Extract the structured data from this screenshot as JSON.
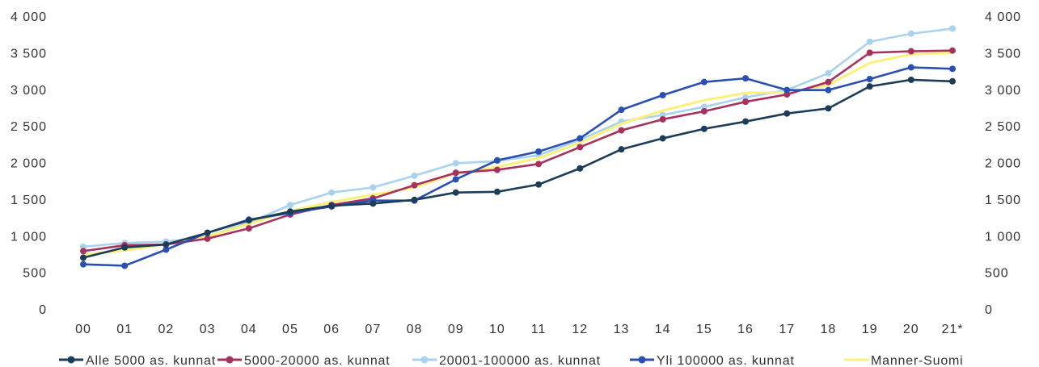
{
  "chart_data": {
    "type": "line",
    "categories": [
      "00",
      "01",
      "02",
      "03",
      "04",
      "05",
      "06",
      "07",
      "08",
      "09",
      "10",
      "11",
      "12",
      "13",
      "14",
      "15",
      "16",
      "17",
      "18",
      "19",
      "20",
      "21*"
    ],
    "y_ticks": [
      "0",
      "500",
      "1 000",
      "1 500",
      "2 000",
      "2 500",
      "3 000",
      "3 500",
      "4 000"
    ],
    "y_tick_values": [
      0,
      500,
      1000,
      1500,
      2000,
      2500,
      3000,
      3500,
      4000
    ],
    "ylim": [
      0,
      4000
    ],
    "grid": false,
    "legend_position": "bottom",
    "series": [
      {
        "name": "Alle 5000 as. kunnat",
        "color": "#1c3d5a",
        "marker": true,
        "values": [
          700,
          840,
          880,
          1040,
          1210,
          1330,
          1410,
          1440,
          1490,
          1590,
          1600,
          1700,
          1920,
          2180,
          2330,
          2460,
          2560,
          2670,
          2740,
          3040,
          3130,
          3110
        ]
      },
      {
        "name": "5000-20000 as. kunnat",
        "color": "#a8305e",
        "marker": true,
        "values": [
          790,
          870,
          880,
          960,
          1100,
          1290,
          1420,
          1510,
          1690,
          1860,
          1900,
          1980,
          2210,
          2440,
          2590,
          2700,
          2830,
          2930,
          3100,
          3500,
          3520,
          3530
        ]
      },
      {
        "name": "20001-100000 as. kunnat",
        "color": "#a9d2f0",
        "marker": true,
        "values": [
          850,
          900,
          920,
          990,
          1180,
          1420,
          1590,
          1660,
          1820,
          1990,
          2020,
          2100,
          2310,
          2560,
          2650,
          2760,
          2890,
          2990,
          3220,
          3650,
          3760,
          3830
        ]
      },
      {
        "name": "Yli 100000 as. kunnat",
        "color": "#2a4fb2",
        "marker": true,
        "values": [
          610,
          590,
          810,
          1040,
          1220,
          1310,
          1400,
          1480,
          1480,
          1770,
          2030,
          2150,
          2330,
          2720,
          2920,
          3100,
          3150,
          2990,
          2990,
          3140,
          3300,
          3280
        ]
      },
      {
        "name": "Manner-Suomi",
        "color": "#fdf078",
        "marker": false,
        "values": [
          740,
          800,
          880,
          990,
          1160,
          1340,
          1460,
          1560,
          1660,
          1850,
          1940,
          2060,
          2270,
          2530,
          2710,
          2850,
          2950,
          2960,
          3060,
          3360,
          3480,
          3500
        ]
      }
    ]
  }
}
